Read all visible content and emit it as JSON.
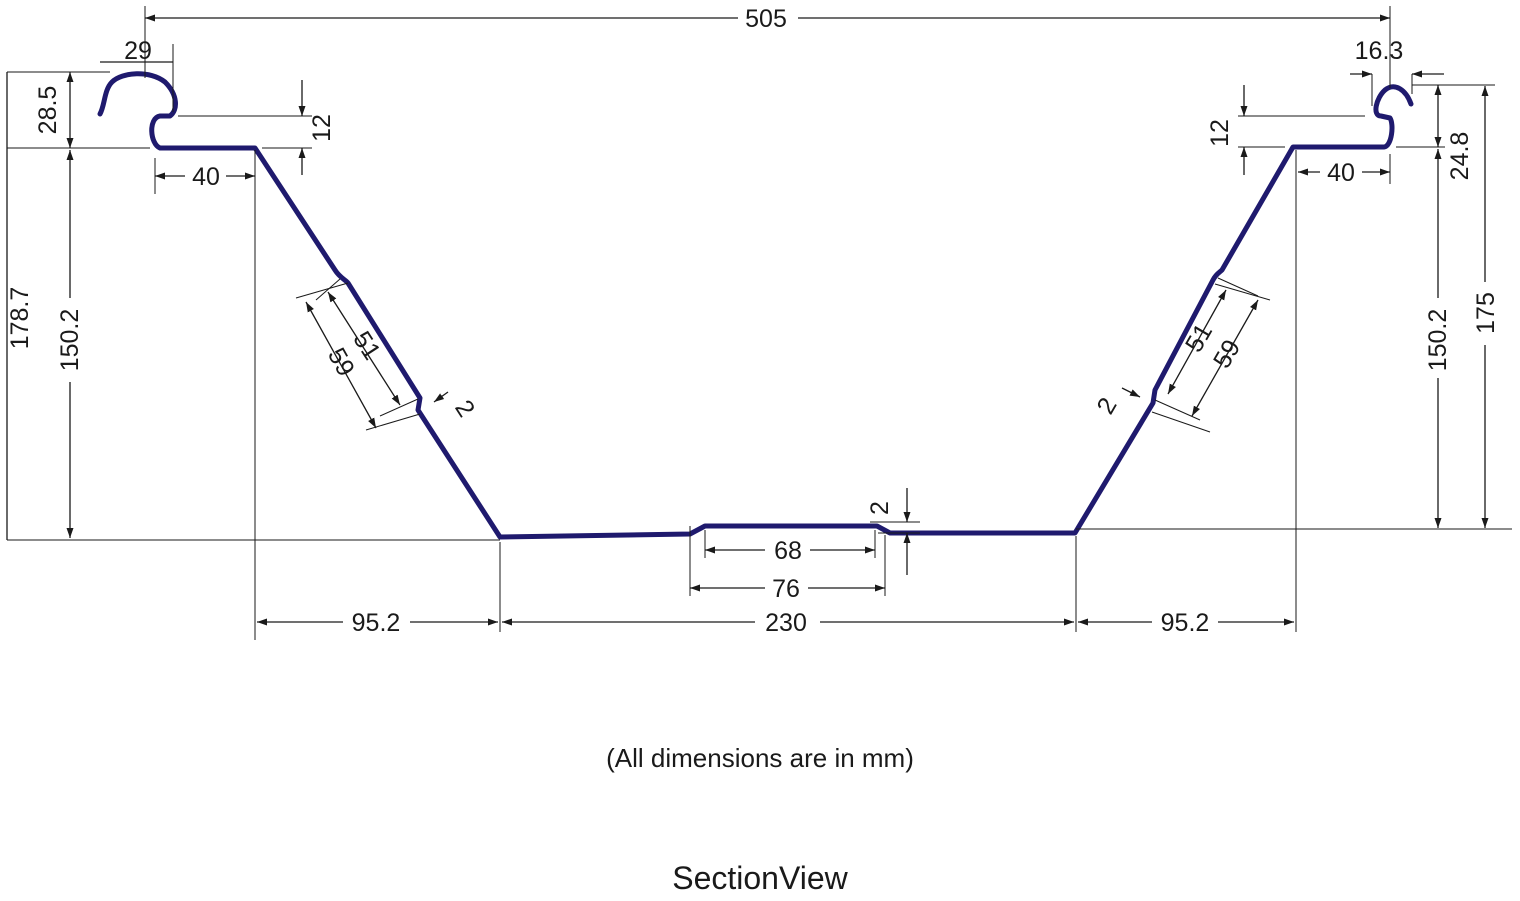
{
  "diagram": {
    "note": "(All dimensions are in mm)",
    "title": "SectionView",
    "profile_color": "#1f1a6e",
    "dimensions": {
      "overall_width": "505",
      "left_hook_width": "29",
      "right_hook_width": "16.3",
      "left_hook_height": "28.5",
      "right_hook_height": "24.8",
      "left_flange_step": "12",
      "right_flange_step": "12",
      "left_flange": "40",
      "right_flange": "40",
      "left_overall_height": "178.7",
      "left_web_height": "150.2",
      "right_web_height": "150.2",
      "right_overall_height": "175",
      "left_stiffener_inner": "51",
      "left_stiffener_outer": "59",
      "right_stiffener_inner": "51",
      "right_stiffener_outer": "59",
      "left_stiffener_depth": "2",
      "right_stiffener_depth": "2",
      "bottom_rib_depth": "2",
      "bottom_rib_inner": "68",
      "bottom_rib_outer": "76",
      "left_web_run": "95.2",
      "bottom_width": "230",
      "right_web_run": "95.2"
    }
  }
}
